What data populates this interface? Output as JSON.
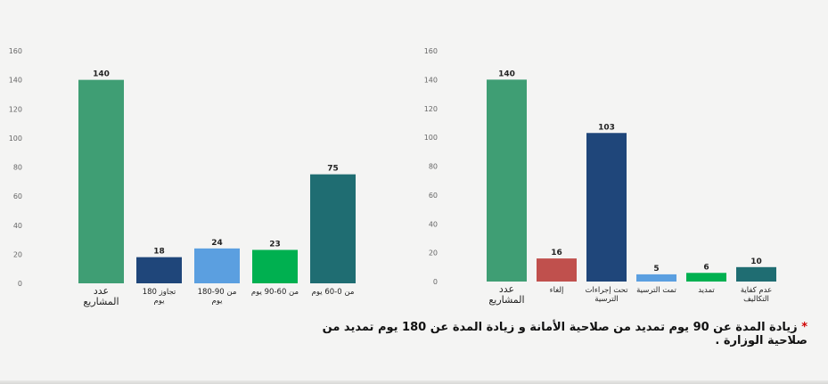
{
  "chart_data": [
    {
      "type": "bar",
      "categories": [
        "عدد المشاريع",
        "تجاوز 180 يوم",
        "من 90-180 يوم",
        "من 60-90 يوم",
        "من 0-60 يوم"
      ],
      "values": [
        140,
        18,
        24,
        23,
        75
      ],
      "colors": [
        "#3f9e74",
        "#1f467a",
        "#5b9fe0",
        "#00b050",
        "#1f6d72"
      ],
      "ylim": [
        0,
        160
      ],
      "yticks": [
        0,
        20,
        40,
        60,
        80,
        100,
        120,
        140,
        160
      ],
      "grid": false
    },
    {
      "type": "bar",
      "categories": [
        "عدد المشاريع",
        "إلغاء",
        "تحت إجراءات الترسية",
        "تمت الترسية",
        "تمديد",
        "عدم كفاية التكاليف"
      ],
      "values": [
        140,
        16,
        103,
        5,
        6,
        10
      ],
      "colors": [
        "#3f9e74",
        "#c0504d",
        "#1f467a",
        "#5b9fe0",
        "#00b050",
        "#1f6d72"
      ],
      "ylim": [
        0,
        160
      ],
      "yticks": [
        0,
        20,
        40,
        60,
        80,
        100,
        120,
        140,
        160
      ],
      "grid": false
    }
  ],
  "footnote": {
    "star": "*",
    "text": "زيادة المدة عن 90 يوم تمديد من صلاحية الأمانة و زيادة المدة عن 180 يوم تمديد من صلاحية الوزارة ."
  }
}
